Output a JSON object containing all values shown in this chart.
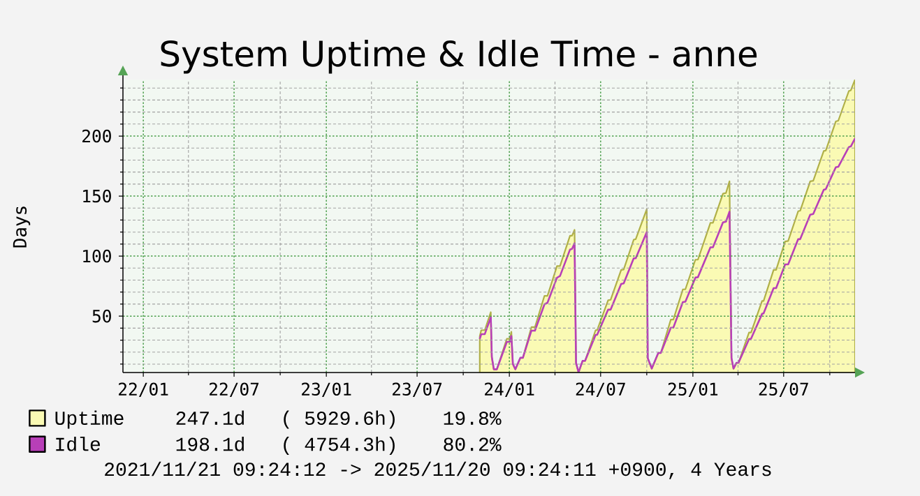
{
  "chart_data": {
    "type": "area",
    "title": "System Uptime & Idle Time - anne",
    "ylabel": "Days",
    "x": [
      "2023-11-03",
      "2023-11-06",
      "2023-11-13",
      "2023-11-25",
      "2023-11-27",
      "2023-12-01",
      "2023-12-07",
      "2023-12-27",
      "2024-01-02",
      "2024-01-05",
      "2024-01-08",
      "2024-01-13",
      "2024-01-23",
      "2024-01-28",
      "2024-02-14",
      "2024-02-21",
      "2024-03-11",
      "2024-03-17",
      "2024-04-05",
      "2024-04-11",
      "2024-05-01",
      "2024-05-05",
      "2024-05-10",
      "2024-05-13",
      "2024-05-18",
      "2024-05-26",
      "2024-05-31",
      "2024-06-21",
      "2024-06-24",
      "2024-07-16",
      "2024-07-21",
      "2024-08-11",
      "2024-08-16",
      "2024-09-05",
      "2024-09-09",
      "2024-10-01",
      "2024-10-03",
      "2024-10-11",
      "2024-10-24",
      "2024-10-29",
      "2024-11-18",
      "2024-11-23",
      "2024-12-12",
      "2024-12-17",
      "2025-01-06",
      "2025-01-11",
      "2025-02-05",
      "2025-02-10",
      "2025-03-02",
      "2025-03-08",
      "2025-03-15",
      "2025-03-19",
      "2025-03-23",
      "2025-03-29",
      "2025-04-02",
      "2025-04-23",
      "2025-04-27",
      "2025-05-19",
      "2025-05-22",
      "2025-06-11",
      "2025-06-16",
      "2025-07-04",
      "2025-07-10",
      "2025-07-30",
      "2025-08-03",
      "2025-08-23",
      "2025-08-29",
      "2025-09-19",
      "2025-09-23",
      "2025-10-13",
      "2025-10-18",
      "2025-11-08",
      "2025-11-12",
      "2025-11-20T09:24"
    ],
    "series": [
      {
        "name": "Uptime",
        "color": "#fafab4",
        "values": [
          33.4,
          38.3,
          38.3,
          53.3,
          15.9,
          5.7,
          5.7,
          31.1,
          31.1,
          37.0,
          10.1,
          5.7,
          15.3,
          15.3,
          40.8,
          40.8,
          66.9,
          66.9,
          91.7,
          91.7,
          117.0,
          117.0,
          121.9,
          11.1,
          3.2,
          12.7,
          12.7,
          38.3,
          38.3,
          63.2,
          63.6,
          88.5,
          88.8,
          113.7,
          114.1,
          139.0,
          15.0,
          6.3,
          19.3,
          19.3,
          47.1,
          47.1,
          72.3,
          72.3,
          97.0,
          97.0,
          127.7,
          127.7,
          152.0,
          152.6,
          162.3,
          15.0,
          6.3,
          11.1,
          11.1,
          36.4,
          36.4,
          62.6,
          62.6,
          88.5,
          88.5,
          112.2,
          112.6,
          137.4,
          137.8,
          162.3,
          162.7,
          187.6,
          187.9,
          212.2,
          212.8,
          237.5,
          238.1,
          247.1
        ]
      },
      {
        "name": "Idle",
        "type": "line",
        "color": "#b83fb8",
        "values": [
          30.9,
          35.0,
          35.0,
          49.0,
          15.9,
          5.7,
          5.7,
          28.6,
          28.6,
          33.4,
          10.1,
          5.7,
          15.3,
          15.3,
          37.9,
          37.9,
          59.8,
          61.1,
          82.0,
          83.4,
          105.5,
          106.0,
          110.6,
          11.1,
          3.2,
          12.7,
          12.7,
          34.4,
          34.4,
          55.4,
          55.4,
          76.8,
          77.2,
          98.2,
          98.2,
          120.0,
          15.0,
          6.3,
          19.3,
          19.3,
          40.3,
          40.3,
          61.7,
          62.0,
          82.1,
          82.4,
          107.3,
          107.3,
          128.1,
          128.7,
          137.0,
          15.0,
          6.3,
          11.1,
          11.1,
          30.9,
          31.2,
          51.9,
          52.3,
          73.3,
          73.3,
          93.1,
          93.1,
          114.1,
          114.1,
          134.5,
          135.1,
          155.3,
          155.7,
          174.0,
          174.4,
          190.8,
          191.4,
          198.1
        ]
      }
    ],
    "xlim": [
      "2021-11-21T09:24",
      "2025-11-20T09:24"
    ],
    "xticks": [
      {
        "value": "2022-01-01",
        "label": "22/01"
      },
      {
        "value": "2022-04-01",
        "label": null
      },
      {
        "value": "2022-07-01",
        "label": "22/07"
      },
      {
        "value": "2022-10-01",
        "label": null
      },
      {
        "value": "2023-01-01",
        "label": "23/01"
      },
      {
        "value": "2023-04-01",
        "label": null
      },
      {
        "value": "2023-07-01",
        "label": "23/07"
      },
      {
        "value": "2023-10-01",
        "label": null
      },
      {
        "value": "2024-01-01",
        "label": "24/01"
      },
      {
        "value": "2024-04-01",
        "label": null
      },
      {
        "value": "2024-07-01",
        "label": "24/07"
      },
      {
        "value": "2024-10-01",
        "label": null
      },
      {
        "value": "2025-01-01",
        "label": "25/01"
      },
      {
        "value": "2025-04-01",
        "label": null
      },
      {
        "value": "2025-07-01",
        "label": "25/07"
      },
      {
        "value": "2025-10-01",
        "label": null
      }
    ],
    "ylim": [
      3,
      247.1
    ],
    "yticks": [
      {
        "value": 10,
        "label": null
      },
      {
        "value": 20,
        "label": null
      },
      {
        "value": 30,
        "label": null
      },
      {
        "value": 40,
        "label": null
      },
      50,
      {
        "value": 60,
        "label": null
      },
      {
        "value": 70,
        "label": null
      },
      {
        "value": 80,
        "label": null
      },
      {
        "value": 90,
        "label": null
      },
      100,
      {
        "value": 110,
        "label": null
      },
      {
        "value": 120,
        "label": null
      },
      {
        "value": 130,
        "label": null
      },
      {
        "value": 140,
        "label": null
      },
      150,
      {
        "value": 160,
        "label": null
      },
      {
        "value": 170,
        "label": null
      },
      {
        "value": 180,
        "label": null
      },
      {
        "value": 190,
        "label": null
      },
      200,
      {
        "value": 210,
        "label": null
      },
      {
        "value": 220,
        "label": null
      },
      {
        "value": 230,
        "label": null
      },
      {
        "value": 240,
        "label": null
      }
    ],
    "grid": true,
    "legend": "bottom",
    "annotations": [
      "247.1d",
      "( 5929.6h)",
      "19.8%",
      "198.1d",
      "( 4754.3h)",
      "80.2%",
      "2021/11/21 09:24:12 -> 2025/11/20 09:24:11 +0900, 4 Years"
    ]
  }
}
